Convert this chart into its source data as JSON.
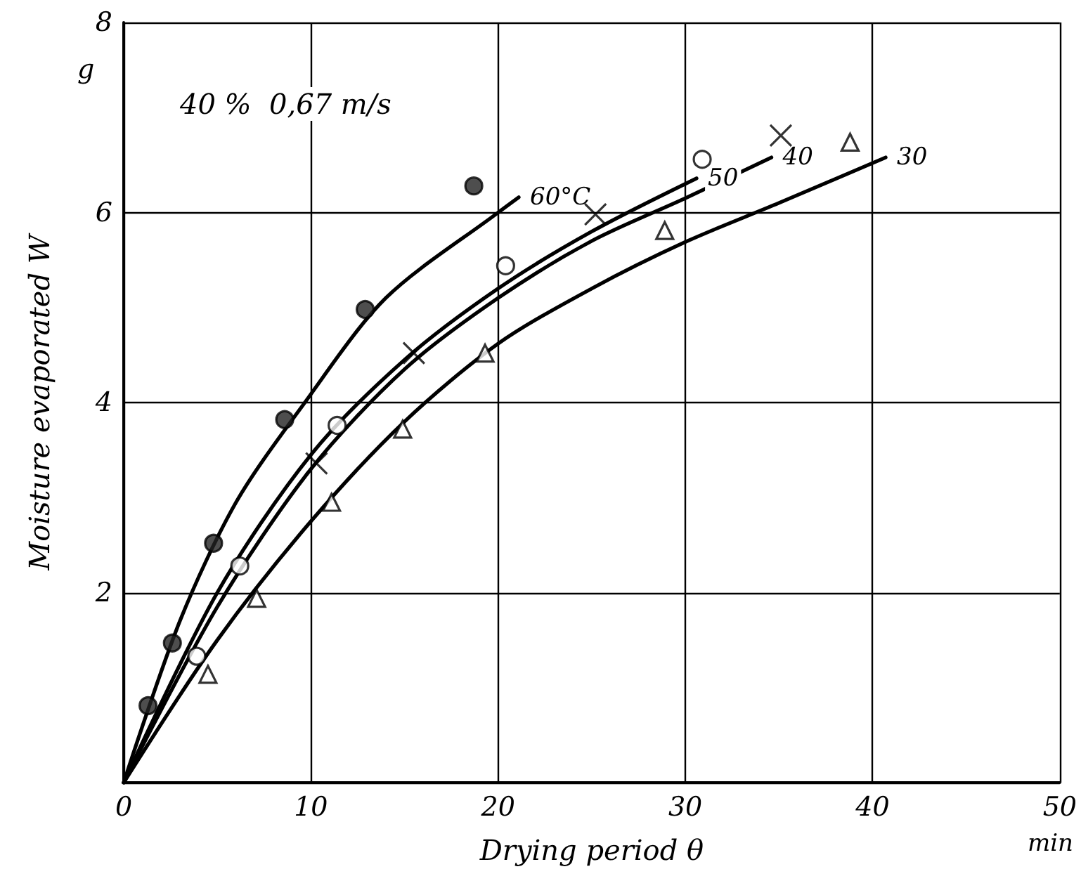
{
  "chart_data": {
    "type": "scatter",
    "xlabel": "Drying period θ",
    "ylabel": "Moisture evaporated W",
    "annotations": [
      "40 %  0,67 m/s",
      "g",
      "min"
    ],
    "xlim": [
      0,
      50
    ],
    "xticks": [
      0,
      10,
      20,
      30,
      40,
      50
    ],
    "ylim": [
      0,
      8
    ],
    "yticks": [
      {
        "value": 0,
        "label": null
      },
      2,
      4,
      6,
      8
    ],
    "grid": true,
    "series": [
      {
        "marker": "circle",
        "color": "#222222",
        "x": [
          1.3,
          2.6,
          4.8,
          8.6,
          12.9,
          18.7
        ],
        "values": [
          0.81,
          1.47,
          2.52,
          3.82,
          4.98,
          6.28
        ]
      },
      {
        "marker": "circle",
        "color": "#ffffff",
        "x": [
          3.9,
          6.2,
          11.4,
          20.4,
          30.9
        ],
        "values": [
          1.33,
          2.28,
          3.76,
          5.44,
          6.56
        ]
      },
      {
        "marker": "cross",
        "color": "#000000",
        "x": [
          10.3,
          15.5,
          25.2,
          35.1
        ],
        "values": [
          3.36,
          4.52,
          5.98,
          6.81
        ]
      },
      {
        "marker": "triangle",
        "color": "#ffffff",
        "x": [
          4.5,
          7.1,
          11.1,
          14.9,
          19.3,
          28.9,
          38.8
        ],
        "values": [
          1.14,
          1.94,
          2.95,
          3.72,
          4.52,
          5.81,
          6.74
        ]
      },
      {
        "type": "line",
        "name": "60°C",
        "marker": "none",
        "color": "#000000",
        "x": [
          0,
          3,
          6,
          9.6,
          14,
          20,
          21.1
        ],
        "values": [
          0,
          1.7,
          2.95,
          3.98,
          5.1,
          6.0,
          6.16
        ]
      },
      {
        "type": "line",
        "name": "50",
        "marker": "none",
        "color": "#000000",
        "x": [
          0,
          5,
          10,
          15,
          20,
          25,
          30.6
        ],
        "values": [
          0,
          2.0,
          3.45,
          4.45,
          5.2,
          5.8,
          6.36
        ]
      },
      {
        "type": "line",
        "name": "40",
        "marker": "none",
        "color": "#000000",
        "x": [
          0,
          5,
          10,
          15,
          20,
          25,
          30,
          34.6
        ],
        "values": [
          0,
          1.85,
          3.3,
          4.35,
          5.1,
          5.7,
          6.15,
          6.58
        ]
      },
      {
        "type": "line",
        "name": "30",
        "marker": "none",
        "color": "#000000",
        "x": [
          0,
          5,
          10,
          15,
          20,
          25,
          30,
          35,
          40.7
        ],
        "values": [
          0,
          1.5,
          2.75,
          3.8,
          4.62,
          5.2,
          5.69,
          6.1,
          6.58
        ]
      }
    ]
  }
}
